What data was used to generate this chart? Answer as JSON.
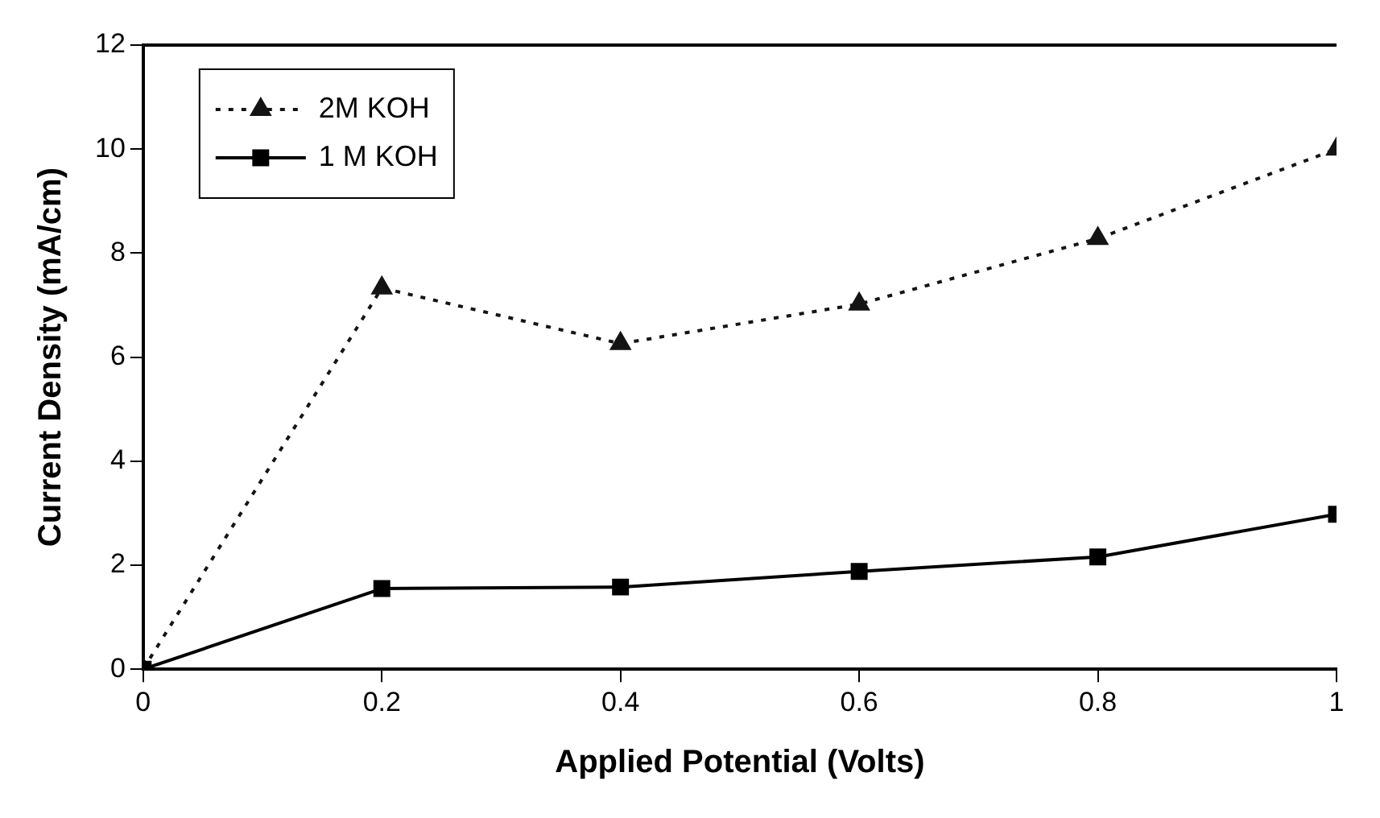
{
  "chart_data": {
    "type": "line",
    "xlabel": "Applied Potential (Volts)",
    "ylabel": "Current Density (mA/cm)",
    "x": [
      0,
      0.2,
      0.4,
      0.6,
      0.8,
      1
    ],
    "series": [
      {
        "name": "2M KOH",
        "color": "#141414",
        "marker": "triangle",
        "line_style": "dotted",
        "values": [
          0,
          7.33,
          6.26,
          7.02,
          8.28,
          10.0
        ]
      },
      {
        "name": "1 M KOH",
        "color": "#000000",
        "marker": "square",
        "line_style": "solid",
        "values": [
          0,
          1.55,
          1.58,
          1.88,
          2.16,
          2.98
        ]
      }
    ],
    "xlim": [
      0,
      1
    ],
    "xticks": [
      0,
      0.2,
      0.4,
      0.6,
      0.8,
      1
    ],
    "ylim": [
      0,
      12
    ],
    "yticks": [
      0,
      2,
      4,
      6,
      8,
      10,
      12
    ],
    "grid": false,
    "legend": "top left"
  }
}
